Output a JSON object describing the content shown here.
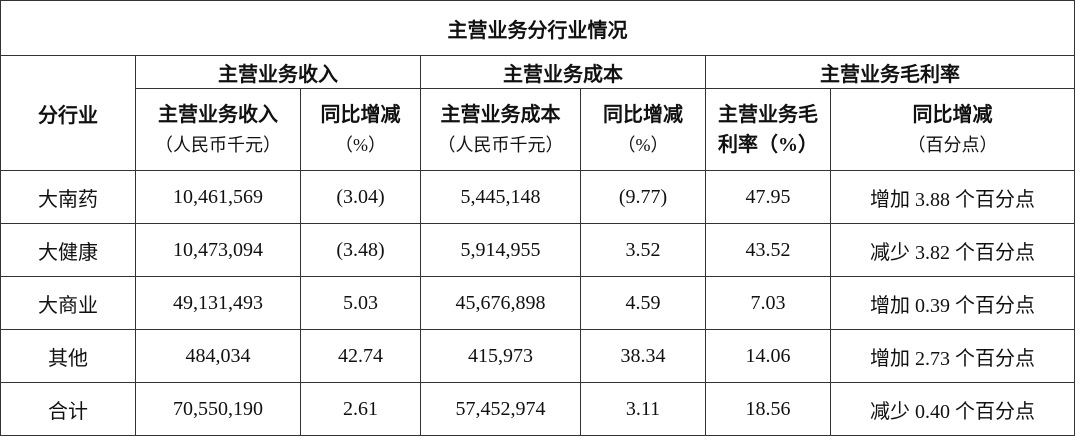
{
  "title": "主营业务分行业情况",
  "header": {
    "segment": "分行业",
    "groups": [
      "主营业务收入",
      "主营业务成本",
      "主营业务毛利率"
    ],
    "columns": [
      {
        "label": "主营业务收入",
        "unit": "（人民币千元）"
      },
      {
        "label": "同比增减",
        "unit": "（%）"
      },
      {
        "label": "主营业务成本",
        "unit": "（人民币千元）"
      },
      {
        "label": "同比增减",
        "unit": "（%）"
      },
      {
        "label": "主营业务毛利率（%）"
      },
      {
        "label": "同比增减",
        "unit": "（百分点）"
      }
    ]
  },
  "rows": [
    [
      "大南药",
      "10,461,569",
      "(3.04)",
      "5,445,148",
      "(9.77)",
      "47.95",
      "增加 3.88 个百分点"
    ],
    [
      "大健康",
      "10,473,094",
      "(3.48)",
      "5,914,955",
      "3.52",
      "43.52",
      "减少 3.82 个百分点"
    ],
    [
      "大商业",
      "49,131,493",
      "5.03",
      "45,676,898",
      "4.59",
      "7.03",
      "增加 0.39 个百分点"
    ],
    [
      "其他",
      "484,034",
      "42.74",
      "415,973",
      "38.34",
      "14.06",
      "增加 2.73 个百分点"
    ],
    [
      "合计",
      "70,550,190",
      "2.61",
      "57,452,974",
      "3.11",
      "18.56",
      "减少 0.40 个百分点"
    ]
  ]
}
